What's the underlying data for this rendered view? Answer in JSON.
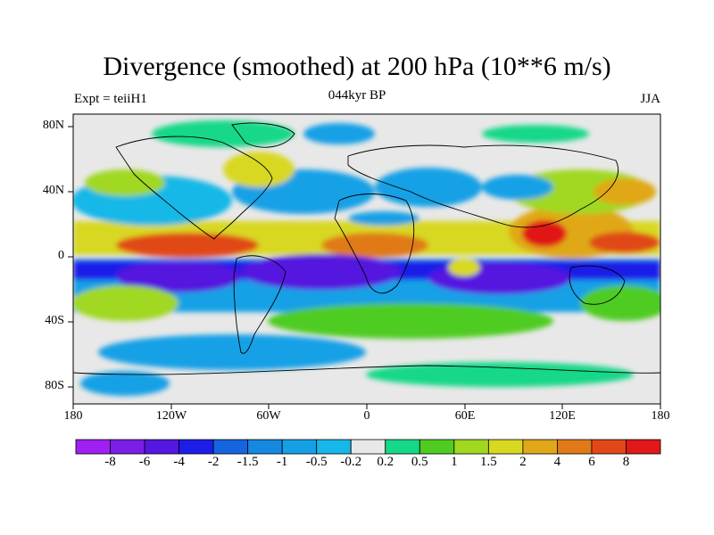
{
  "title": "Divergence (smoothed) at 200 hPa (10**6 m/s)",
  "subtitle_left": "Expt = teiiH1",
  "subtitle_center": "044kyr BP",
  "subtitle_right": "JJA",
  "y_ticks": [
    "80N",
    "40N",
    "0",
    "40S",
    "80S"
  ],
  "x_ticks": [
    "180",
    "120W",
    "60W",
    "0",
    "60E",
    "120E",
    "180"
  ],
  "colorbar": {
    "labels": [
      "-8",
      "-6",
      "-4",
      "-2",
      "-1.5",
      "-1",
      "-0.5",
      "-0.2",
      "0.2",
      "0.5",
      "1",
      "1.5",
      "2",
      "4",
      "6",
      "8"
    ],
    "colors": [
      "#9f20f0",
      "#7a1ee8",
      "#5516e0",
      "#1d1de8",
      "#1565e0",
      "#1588e0",
      "#15a0e6",
      "#15b8e8",
      "#e8e8e8",
      "#15d888",
      "#50cc20",
      "#a0d820",
      "#d8d820",
      "#e0a818",
      "#e07a18",
      "#e04818",
      "#e01818"
    ]
  },
  "colors": {
    "background": "#ffffff",
    "land_outline": "#000000",
    "neutral_fill": "#e8e8e8"
  }
}
